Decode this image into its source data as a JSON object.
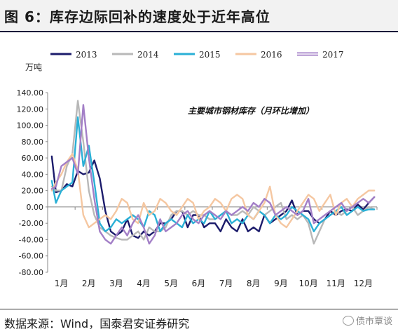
{
  "figure": {
    "title": "图 6：库存边际回补的速度处于近年高位",
    "source": "数据来源：Wind，国泰君安证券研究",
    "watermark": "债市覃谈"
  },
  "chart_data": {
    "type": "line",
    "unit_label": "万吨",
    "annotation": "主要城市钢材库存（月环比增加）",
    "ylim": [
      -80,
      140
    ],
    "yticks": [
      "140.00",
      "120.00",
      "100.00",
      "80.00",
      "60.00",
      "40.00",
      "20.00",
      "0.00",
      "-20.00",
      "-40.00",
      "-60.00",
      "-80.00"
    ],
    "xlim": [
      0,
      12
    ],
    "xtick_labels": [
      "1月",
      "2月",
      "3月",
      "4月",
      "5月",
      "6月",
      "7月",
      "8月",
      "9月",
      "10月",
      "11月",
      "12月"
    ],
    "legend_position": "top",
    "grid": false,
    "series": [
      {
        "name": "2013",
        "color": "#1b1b6b",
        "x": [
          0.15,
          0.3,
          0.5,
          0.7,
          0.9,
          1.1,
          1.3,
          1.5,
          1.7,
          1.9,
          2.1,
          2.3,
          2.5,
          2.7,
          2.9,
          3.1,
          3.3,
          3.5,
          3.7,
          3.9,
          4.1,
          4.3,
          4.5,
          4.7,
          4.9,
          5.1,
          5.3,
          5.5,
          5.7,
          5.9,
          6.1,
          6.3,
          6.5,
          6.7,
          6.9,
          7.1,
          7.3,
          7.5,
          7.7,
          7.9,
          8.1,
          8.3,
          8.5,
          8.7,
          8.9,
          9.1,
          9.3,
          9.5,
          9.7,
          9.9,
          10.1,
          10.3,
          10.5,
          10.7,
          10.9,
          11.1,
          11.3,
          11.5,
          11.7,
          11.9
        ],
        "y": [
          62,
          18,
          20,
          28,
          25,
          44,
          40,
          42,
          57,
          35,
          -5,
          -30,
          -35,
          -30,
          -15,
          -35,
          -38,
          -30,
          -35,
          -30,
          -20,
          -20,
          -15,
          -5,
          -5,
          -25,
          -10,
          -10,
          -25,
          -20,
          -20,
          -30,
          -15,
          -25,
          -30,
          -15,
          -30,
          -25,
          -30,
          -10,
          -20,
          -15,
          -10,
          -5,
          8,
          -10,
          -5,
          -5,
          -15,
          -20,
          -15,
          -5,
          -10,
          -5,
          -3,
          -5,
          3,
          -3,
          5,
          12
        ]
      },
      {
        "name": "2014",
        "color": "#b8b8b8",
        "x": [
          0.15,
          0.3,
          0.5,
          0.7,
          0.9,
          1.1,
          1.3,
          1.5,
          1.7,
          1.9,
          2.1,
          2.3,
          2.5,
          2.7,
          2.9,
          3.1,
          3.3,
          3.5,
          3.7,
          3.9,
          4.1,
          4.3,
          4.5,
          4.7,
          4.9,
          5.1,
          5.3,
          5.5,
          5.7,
          5.9,
          6.1,
          6.3,
          6.5,
          6.7,
          6.9,
          7.1,
          7.3,
          7.5,
          7.7,
          7.9,
          8.1,
          8.3,
          8.5,
          8.7,
          8.9,
          9.1,
          9.3,
          9.5,
          9.7,
          9.9,
          10.1,
          10.3,
          10.5,
          10.7,
          10.9,
          11.1,
          11.3,
          11.5,
          11.7,
          11.9
        ],
        "y": [
          25,
          20,
          20,
          50,
          65,
          130,
          80,
          20,
          -10,
          -25,
          -30,
          -35,
          -38,
          -40,
          -40,
          -35,
          -30,
          -40,
          -25,
          -30,
          -30,
          -25,
          -10,
          -5,
          -5,
          -10,
          -5,
          -10,
          -10,
          -15,
          -15,
          -10,
          -5,
          -10,
          -10,
          -5,
          -10,
          0,
          -5,
          -10,
          -5,
          0,
          5,
          -15,
          -10,
          -15,
          -10,
          -20,
          -45,
          -30,
          -15,
          -10,
          -5,
          -10,
          -5,
          0,
          -10,
          -5,
          0,
          -3
        ]
      },
      {
        "name": "2015",
        "color": "#2ab0d6",
        "x": [
          0.15,
          0.3,
          0.5,
          0.7,
          0.9,
          1.1,
          1.3,
          1.5,
          1.7,
          1.9,
          2.1,
          2.3,
          2.5,
          2.7,
          2.9,
          3.1,
          3.3,
          3.5,
          3.7,
          3.9,
          4.1,
          4.3,
          4.5,
          4.7,
          4.9,
          5.1,
          5.3,
          5.5,
          5.7,
          5.9,
          6.1,
          6.3,
          6.5,
          6.7,
          6.9,
          7.1,
          7.3,
          7.5,
          7.7,
          7.9,
          8.1,
          8.3,
          8.5,
          8.7,
          8.9,
          9.1,
          9.3,
          9.5,
          9.7,
          9.9,
          10.1,
          10.3,
          10.5,
          10.7,
          10.9,
          11.1,
          11.3,
          11.5,
          11.7,
          11.9
        ],
        "y": [
          32,
          5,
          20,
          25,
          30,
          110,
          50,
          75,
          30,
          -20,
          -30,
          -25,
          -15,
          -20,
          -15,
          -10,
          -15,
          -25,
          -5,
          -10,
          -30,
          -20,
          -15,
          -20,
          -25,
          -10,
          -20,
          -15,
          -20,
          -5,
          -15,
          -10,
          -5,
          -20,
          -15,
          -20,
          -10,
          -15,
          -5,
          -10,
          -20,
          -10,
          -15,
          -10,
          0,
          -5,
          -10,
          -15,
          -30,
          -20,
          -15,
          -10,
          -5,
          0,
          -10,
          -5,
          0,
          -5,
          -3,
          -3
        ]
      },
      {
        "name": "2016",
        "color": "#f5c7a1",
        "x": [
          0.15,
          0.3,
          0.5,
          0.7,
          0.9,
          1.1,
          1.3,
          1.5,
          1.7,
          1.9,
          2.1,
          2.3,
          2.5,
          2.7,
          2.9,
          3.1,
          3.3,
          3.5,
          3.7,
          3.9,
          4.1,
          4.3,
          4.5,
          4.7,
          4.9,
          5.1,
          5.3,
          5.5,
          5.7,
          5.9,
          6.1,
          6.3,
          6.5,
          6.7,
          6.9,
          7.1,
          7.3,
          7.5,
          7.7,
          7.9,
          8.1,
          8.3,
          8.5,
          8.7,
          8.9,
          9.1,
          9.3,
          9.5,
          9.7,
          9.9,
          10.1,
          10.3,
          10.5,
          10.7,
          10.9,
          11.1,
          11.3,
          11.5,
          11.7,
          11.9
        ],
        "y": [
          20,
          30,
          40,
          55,
          65,
          45,
          -10,
          -25,
          -20,
          -15,
          -10,
          -15,
          -5,
          10,
          5,
          -15,
          -20,
          5,
          -10,
          -5,
          10,
          5,
          -5,
          -10,
          0,
          10,
          5,
          -15,
          -5,
          0,
          10,
          5,
          -5,
          10,
          15,
          10,
          -10,
          -15,
          -5,
          5,
          25,
          -10,
          -20,
          -25,
          -15,
          -5,
          5,
          15,
          10,
          -5,
          5,
          15,
          -10,
          5,
          10,
          0,
          10,
          15,
          20,
          20
        ]
      },
      {
        "name": "2017",
        "color": "#a37fc7",
        "x": [
          0.15,
          0.3,
          0.5,
          0.7,
          0.9,
          1.1,
          1.3,
          1.5,
          1.7,
          1.9,
          2.1,
          2.3,
          2.5,
          2.7,
          2.9,
          3.1,
          3.3,
          3.5,
          3.7,
          3.9,
          4.1,
          4.3,
          4.5,
          4.7,
          4.9,
          5.1,
          5.3,
          5.5,
          5.7,
          5.9,
          6.1,
          6.3,
          6.5,
          6.7,
          6.9,
          7.1,
          7.3,
          7.5,
          7.7,
          7.9,
          8.1,
          8.3,
          8.5,
          8.7,
          8.9,
          9.1,
          9.3,
          9.5,
          9.7,
          9.9,
          10.1,
          10.3,
          10.5,
          10.7,
          10.9,
          11.1,
          11.3,
          11.5,
          11.7,
          11.9
        ],
        "y": [
          22,
          25,
          50,
          55,
          60,
          40,
          125,
          60,
          10,
          -30,
          -40,
          -45,
          -35,
          -25,
          -35,
          -20,
          -10,
          -25,
          -45,
          -35,
          -15,
          -30,
          -25,
          -20,
          -10,
          -5,
          -15,
          -20,
          -10,
          -5,
          -10,
          -15,
          -5,
          -10,
          -5,
          0,
          -5,
          5,
          0,
          10,
          5,
          -10,
          -5,
          0,
          -5,
          -10,
          -5,
          10,
          -20,
          -15,
          -10,
          -5,
          0,
          5,
          -5,
          0,
          5,
          10,
          5,
          12
        ]
      }
    ]
  }
}
